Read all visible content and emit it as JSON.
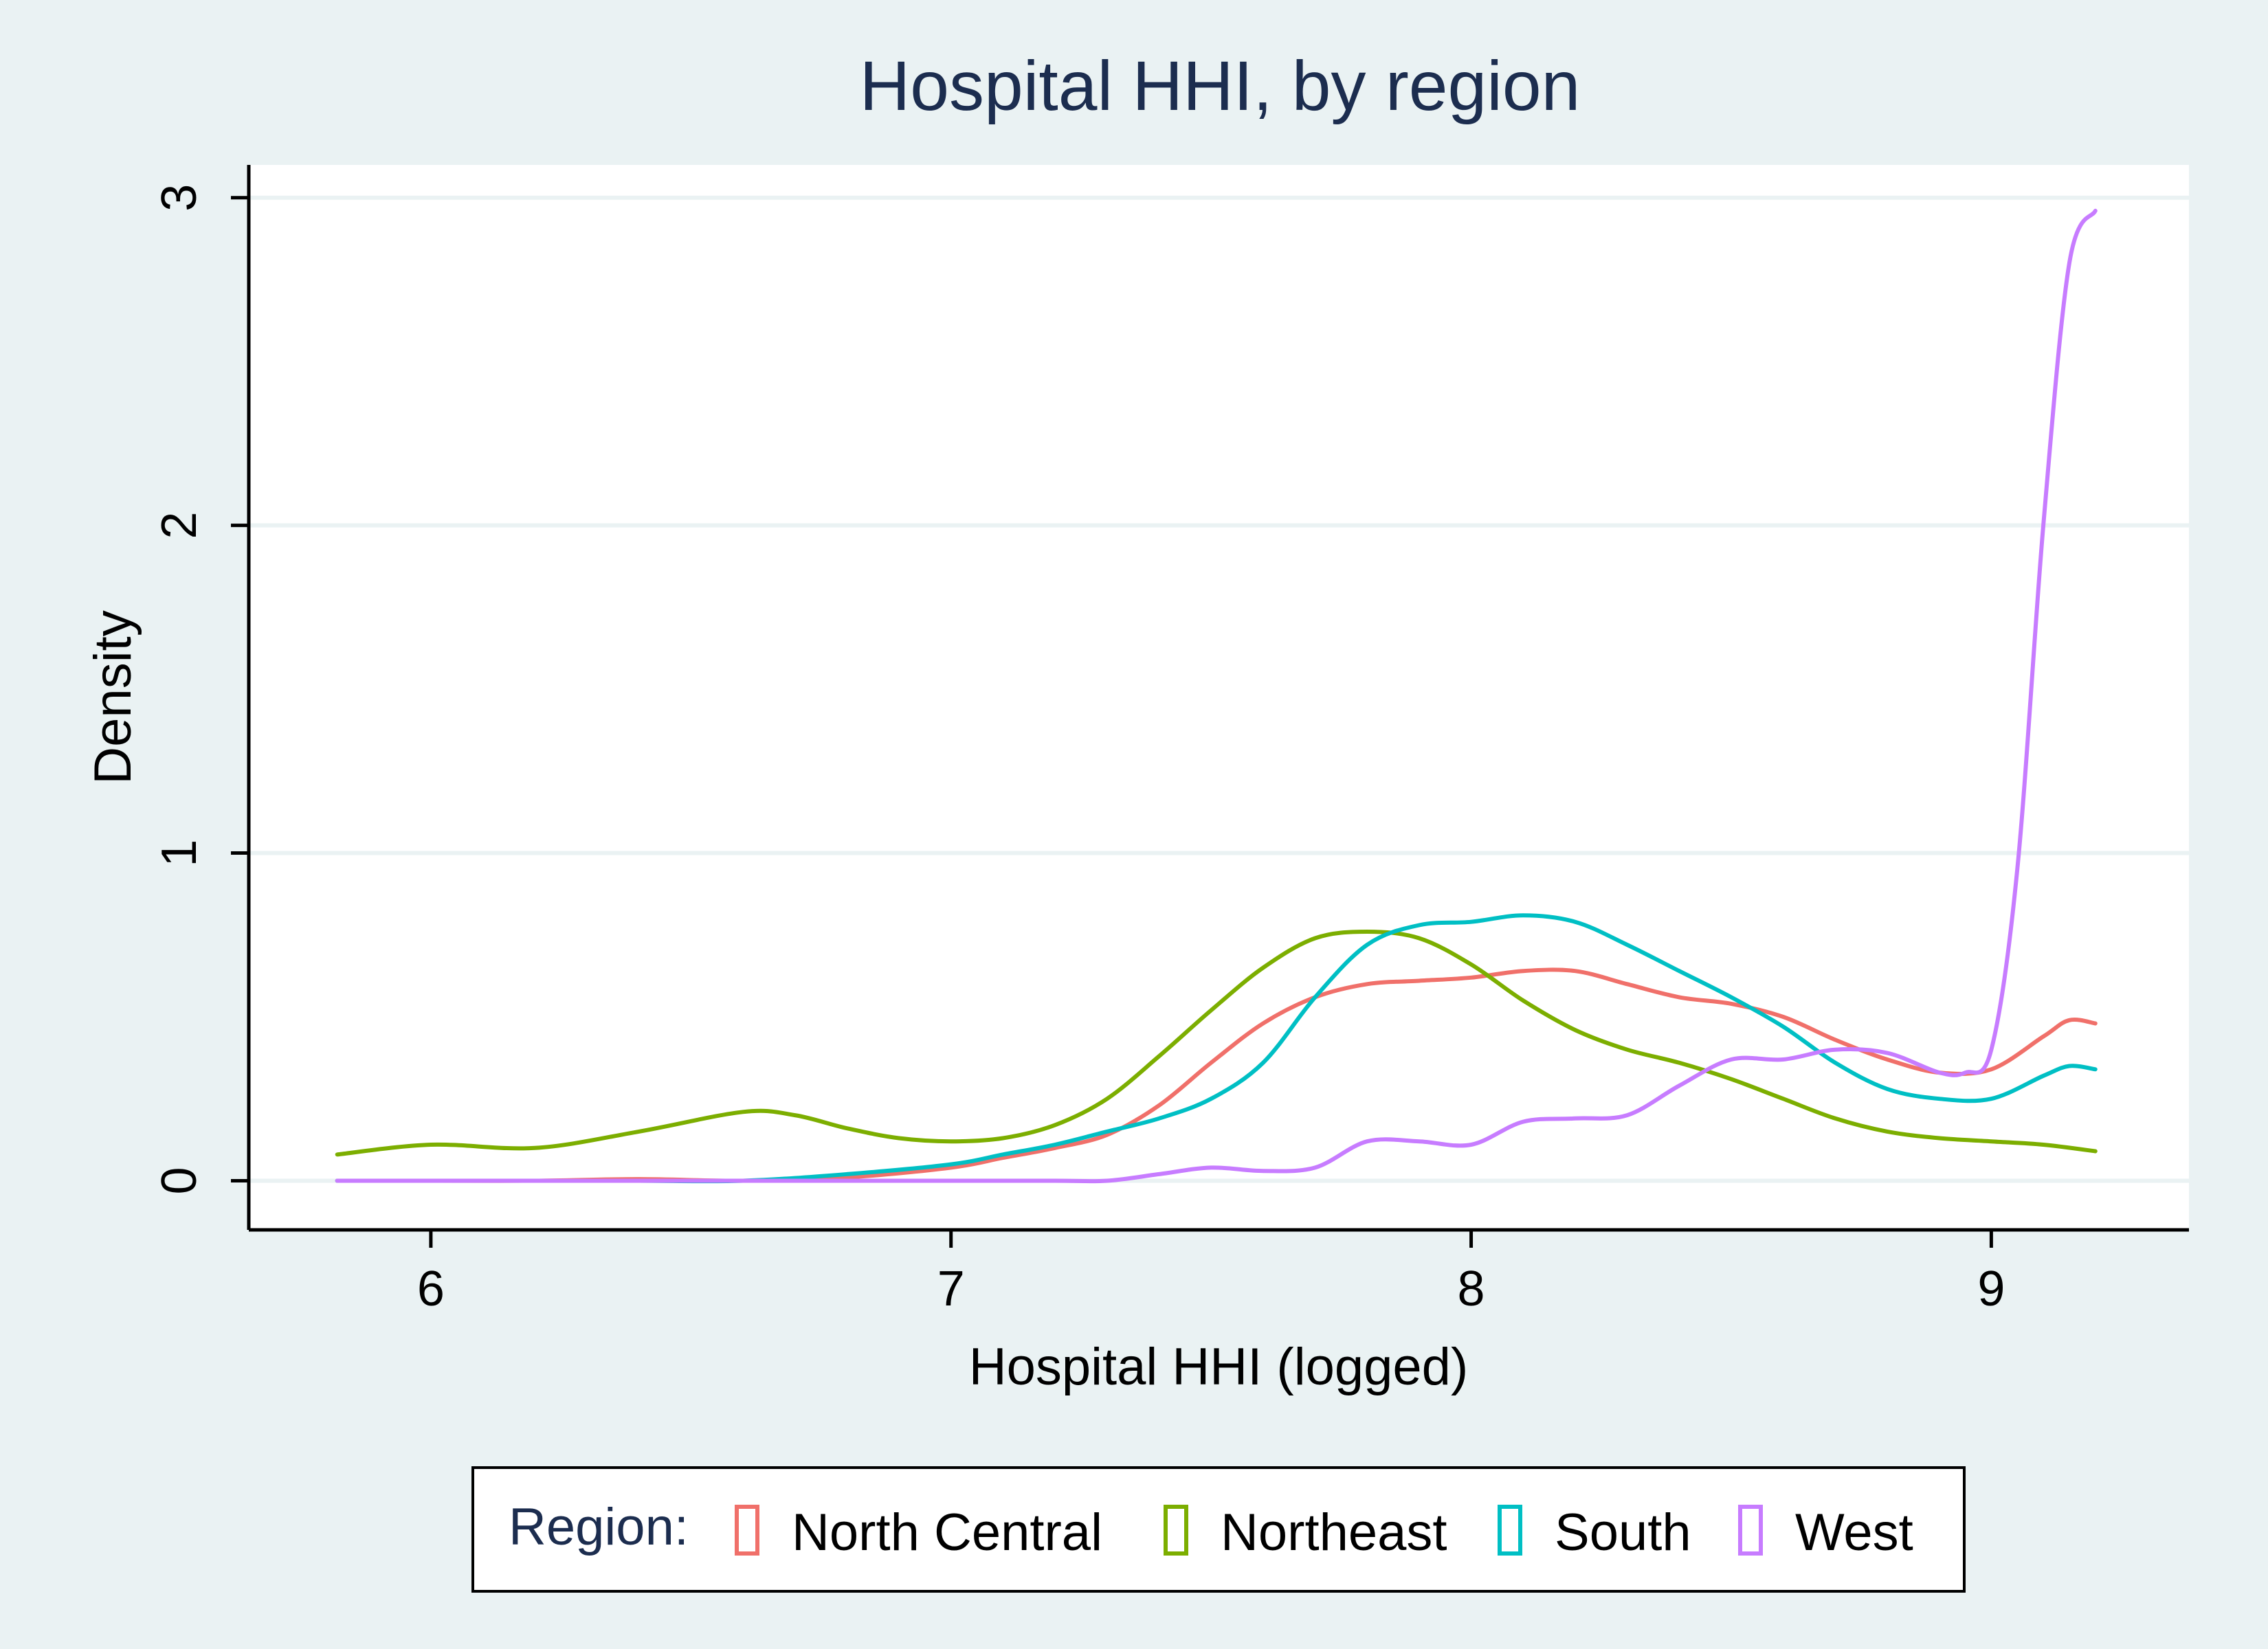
{
  "chart_data": {
    "type": "line",
    "title": "Hospital HHI, by region",
    "xlabel": "Hospital HHI (logged)",
    "ylabel": "Density",
    "xlim": [
      5.65,
      9.38
    ],
    "ylim": [
      -0.15,
      3.1
    ],
    "xticks": [
      6,
      7,
      8,
      9
    ],
    "yticks": [
      0,
      1,
      2,
      3
    ],
    "grid": "horizontal",
    "legend": {
      "title": "Region:",
      "placement": "bottom"
    },
    "series": [
      {
        "name": "North Central",
        "color": "#f0706a",
        "x": [
          5.82,
          6.0,
          6.2,
          6.4,
          6.6,
          6.8,
          7.0,
          7.1,
          7.2,
          7.3,
          7.4,
          7.5,
          7.6,
          7.7,
          7.8,
          7.9,
          8.0,
          8.1,
          8.2,
          8.3,
          8.4,
          8.5,
          8.6,
          8.7,
          8.8,
          8.9,
          9.0,
          9.1,
          9.15,
          9.2
        ],
        "y": [
          0.0,
          0.0,
          0.0,
          0.005,
          0.0,
          0.01,
          0.04,
          0.07,
          0.1,
          0.14,
          0.23,
          0.36,
          0.48,
          0.56,
          0.6,
          0.61,
          0.62,
          0.64,
          0.64,
          0.6,
          0.56,
          0.54,
          0.5,
          0.43,
          0.37,
          0.33,
          0.34,
          0.44,
          0.49,
          0.48
        ]
      },
      {
        "name": "Northeast",
        "color": "#7cae00",
        "x": [
          5.82,
          6.0,
          6.2,
          6.4,
          6.6,
          6.7,
          6.8,
          6.9,
          7.0,
          7.1,
          7.2,
          7.3,
          7.4,
          7.5,
          7.6,
          7.7,
          7.8,
          7.9,
          8.0,
          8.1,
          8.2,
          8.3,
          8.4,
          8.5,
          8.6,
          8.7,
          8.8,
          8.9,
          9.0,
          9.1,
          9.2
        ],
        "y": [
          0.08,
          0.11,
          0.1,
          0.15,
          0.21,
          0.2,
          0.16,
          0.13,
          0.12,
          0.13,
          0.17,
          0.25,
          0.38,
          0.52,
          0.65,
          0.74,
          0.76,
          0.74,
          0.66,
          0.55,
          0.46,
          0.4,
          0.36,
          0.31,
          0.25,
          0.19,
          0.15,
          0.13,
          0.12,
          0.11,
          0.09
        ]
      },
      {
        "name": "South",
        "color": "#00bfc4",
        "x": [
          5.82,
          6.0,
          6.2,
          6.4,
          6.6,
          6.8,
          7.0,
          7.1,
          7.2,
          7.3,
          7.4,
          7.5,
          7.6,
          7.7,
          7.8,
          7.9,
          8.0,
          8.1,
          8.2,
          8.3,
          8.4,
          8.5,
          8.6,
          8.7,
          8.8,
          8.9,
          9.0,
          9.1,
          9.15,
          9.2
        ],
        "y": [
          0.0,
          0.0,
          0.0,
          0.0,
          0.0,
          0.02,
          0.05,
          0.08,
          0.11,
          0.15,
          0.19,
          0.25,
          0.36,
          0.56,
          0.72,
          0.78,
          0.79,
          0.81,
          0.79,
          0.72,
          0.64,
          0.56,
          0.47,
          0.36,
          0.28,
          0.25,
          0.25,
          0.32,
          0.35,
          0.34
        ]
      },
      {
        "name": "West",
        "color": "#c77cff",
        "x": [
          5.82,
          6.0,
          6.2,
          6.4,
          6.6,
          6.8,
          7.0,
          7.2,
          7.3,
          7.4,
          7.5,
          7.6,
          7.7,
          7.8,
          7.9,
          8.0,
          8.1,
          8.2,
          8.3,
          8.4,
          8.5,
          8.6,
          8.7,
          8.8,
          8.9,
          8.95,
          9.0,
          9.05,
          9.1,
          9.15,
          9.2
        ],
        "y": [
          0.0,
          0.0,
          0.0,
          0.0,
          0.0,
          0.0,
          0.0,
          0.0,
          0.0,
          0.02,
          0.04,
          0.03,
          0.04,
          0.12,
          0.12,
          0.11,
          0.18,
          0.19,
          0.2,
          0.29,
          0.37,
          0.37,
          0.4,
          0.39,
          0.33,
          0.33,
          0.4,
          0.95,
          2.0,
          2.8,
          2.96
        ]
      }
    ]
  }
}
